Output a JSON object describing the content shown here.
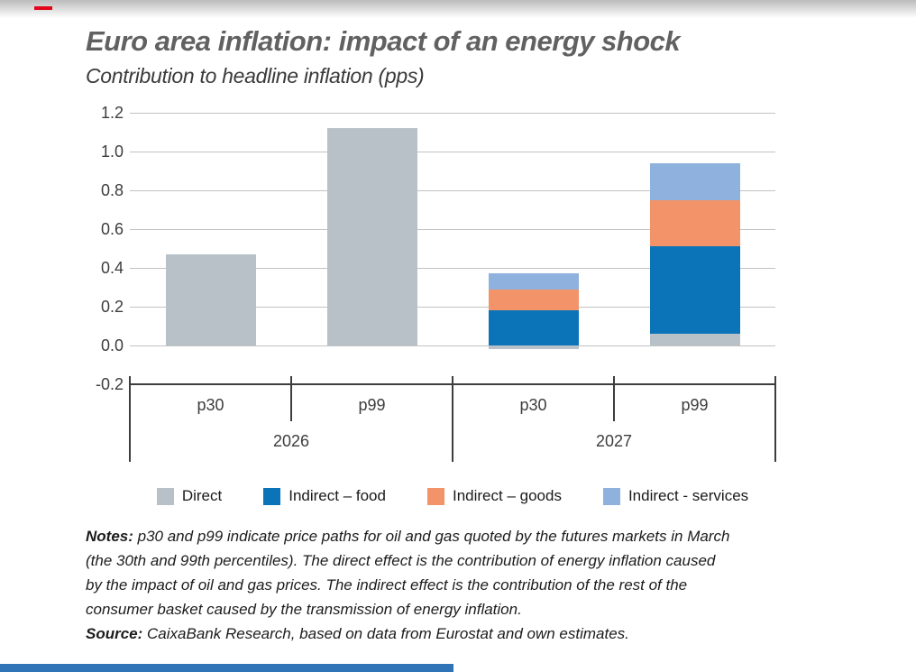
{
  "header": {
    "title": "Euro area inflation: impact of an energy shock",
    "subtitle": "Contribution to headline inflation (pps)"
  },
  "chart_data": {
    "type": "bar",
    "stacked": true,
    "title": "Euro area inflation: impact of an energy shock",
    "ylabel": "Contribution to headline inflation (pps)",
    "categories": [
      "p30",
      "p99",
      "p30",
      "p99"
    ],
    "groups": [
      {
        "label": "2026",
        "category_indices": [
          0,
          1
        ]
      },
      {
        "label": "2027",
        "category_indices": [
          2,
          3
        ]
      }
    ],
    "series": [
      {
        "name": "Direct",
        "color": "#b7c1c7",
        "values": [
          0.47,
          1.12,
          -0.02,
          0.06
        ]
      },
      {
        "name": "Indirect – food",
        "color": "#0b74b8",
        "values": [
          0,
          0,
          0.18,
          0.45
        ]
      },
      {
        "name": "Indirect – goods",
        "color": "#f2936a",
        "values": [
          0,
          0,
          0.11,
          0.24
        ]
      },
      {
        "name": "Indirect - services",
        "color": "#8fb1de",
        "values": [
          0,
          0,
          0.08,
          0.19
        ]
      }
    ],
    "ylim": [
      -0.2,
      1.2
    ],
    "ytick_labels": [
      "1.2",
      "1.0",
      "0.8",
      "0.6",
      "0.4",
      "0.2",
      "0.0",
      "-0.2"
    ],
    "ytick_values": [
      1.2,
      1.0,
      0.8,
      0.6,
      0.4,
      0.2,
      0.0,
      -0.2
    ],
    "grid": true,
    "legend_position": "bottom"
  },
  "notes": {
    "label": "Notes:",
    "lines": [
      "p30 and p99 indicate price paths for oil and gas quoted by the futures markets in March",
      "(the 30th and 99th percentiles). The direct effect is the contribution of energy inflation caused",
      "by the impact of oil and gas prices. The indirect effect is the contribution of the rest of the",
      "consumer basket caused by the transmission of energy inflation."
    ]
  },
  "source": {
    "label": "Source:",
    "text": "CaixaBank Research, based on data from Eurostat and own estimates."
  },
  "decoration": {
    "accent_red": "#e2061b",
    "footer_blue": "#2e74b6"
  }
}
